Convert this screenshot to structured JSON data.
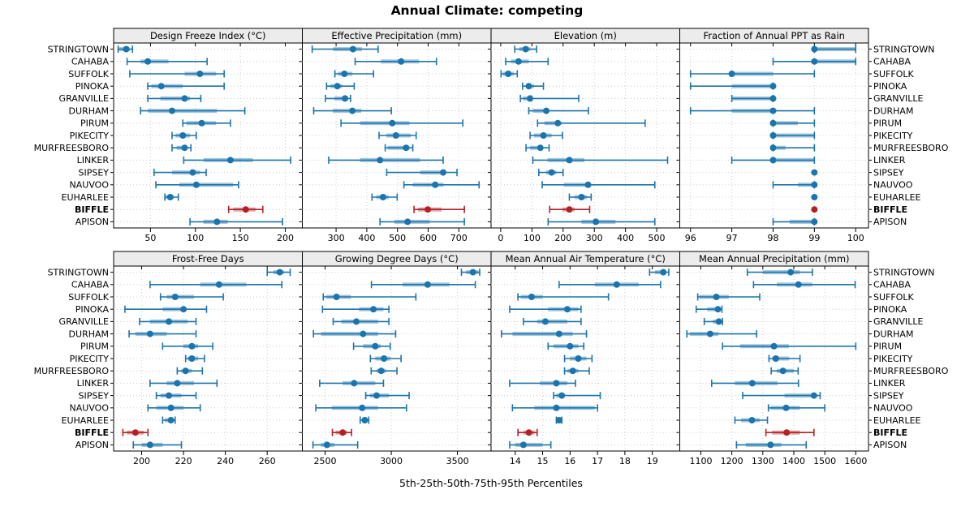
{
  "chart_data": {
    "type": "scatter",
    "subtype": "trellis-percentile-dotplot",
    "title": "Annual Climate: competing",
    "xlabel": "5th-25th-50th-75th-95th Percentiles",
    "layout_hint": {
      "rows": 2,
      "cols": 4,
      "grid": "dotted",
      "row_labels_both_sides": true
    },
    "categories": [
      "STRINGTOWN",
      "CAHABA",
      "SUFFOLK",
      "PINOKA",
      "GRANVILLE",
      "DURHAM",
      "PIRUM",
      "PIKECITY",
      "MURFREESBORO",
      "LINKER",
      "SIPSEY",
      "NAUVOO",
      "EUHARLEE",
      "BIFFLE",
      "APISON"
    ],
    "highlight_category": "BIFFLE",
    "colors": {
      "series": "#1c74ad",
      "highlight": "#b42125",
      "grid": "#cccccc",
      "strip_bg": "#ececec",
      "border": "#000000"
    },
    "panels": [
      {
        "label": "Design Freeze Index (°C)",
        "xlim": [
          9,
          219
        ],
        "ticks": [
          50,
          100,
          150,
          200
        ],
        "percentiles": [
          [
            14,
            15,
            23,
            27,
            30
          ],
          [
            24,
            39,
            47,
            70,
            113
          ],
          [
            27,
            88,
            105,
            123,
            132
          ],
          [
            47,
            51,
            62,
            86,
            132
          ],
          [
            47,
            61,
            88,
            94,
            106
          ],
          [
            39,
            47,
            74,
            124,
            155
          ],
          [
            86,
            90,
            107,
            123,
            139
          ],
          [
            74,
            78,
            86,
            94,
            101
          ],
          [
            74,
            79,
            88,
            91,
            95
          ],
          [
            87,
            109,
            139,
            164,
            206
          ],
          [
            54,
            74,
            97,
            105,
            112
          ],
          [
            56,
            82,
            101,
            142,
            148
          ],
          [
            66,
            67,
            72,
            76,
            81
          ],
          [
            137,
            142,
            156,
            167,
            175
          ],
          [
            94,
            109,
            124,
            136,
            197
          ]
        ]
      },
      {
        "label": "Effective Precipitation (mm)",
        "xlim": [
          190,
          805
        ],
        "ticks": [
          300,
          400,
          500,
          600,
          700
        ],
        "percentiles": [
          [
            222,
            290,
            355,
            384,
            437
          ],
          [
            362,
            446,
            512,
            570,
            627
          ],
          [
            296,
            306,
            327,
            353,
            422
          ],
          [
            269,
            281,
            304,
            320,
            359
          ],
          [
            265,
            294,
            329,
            336,
            347
          ],
          [
            227,
            289,
            353,
            382,
            480
          ],
          [
            316,
            378,
            483,
            539,
            713
          ],
          [
            440,
            464,
            495,
            543,
            561
          ],
          [
            460,
            468,
            528,
            539,
            550
          ],
          [
            276,
            378,
            443,
            574,
            649
          ],
          [
            465,
            574,
            649,
            655,
            694
          ],
          [
            521,
            550,
            623,
            650,
            766
          ],
          [
            417,
            431,
            453,
            472,
            499
          ],
          [
            554,
            567,
            599,
            644,
            718
          ],
          [
            443,
            490,
            533,
            605,
            718
          ]
        ]
      },
      {
        "label": "Elevation (m)",
        "xlim": [
          -31,
          574
        ],
        "ticks": [
          0,
          100,
          200,
          300,
          400,
          500
        ],
        "percentiles": [
          [
            45,
            60,
            80,
            95,
            115
          ],
          [
            16,
            33,
            57,
            90,
            152
          ],
          [
            1,
            7,
            24,
            42,
            53
          ],
          [
            70,
            81,
            90,
            107,
            137
          ],
          [
            63,
            72,
            94,
            103,
            250
          ],
          [
            90,
            103,
            146,
            155,
            281
          ],
          [
            118,
            140,
            183,
            195,
            463
          ],
          [
            94,
            107,
            137,
            163,
            198
          ],
          [
            81,
            94,
            127,
            133,
            155
          ],
          [
            103,
            150,
            220,
            268,
            535
          ],
          [
            122,
            146,
            163,
            178,
            200
          ],
          [
            133,
            203,
            280,
            288,
            494
          ],
          [
            220,
            237,
            259,
            277,
            290
          ],
          [
            157,
            198,
            220,
            237,
            285
          ],
          [
            152,
            259,
            305,
            368,
            494
          ]
        ]
      },
      {
        "label": "Fraction of Annual PPT as Rain",
        "xlim": [
          95.74,
          100.31
        ],
        "ticks": [
          96,
          97,
          98,
          99,
          100
        ],
        "percentiles": [
          [
            99,
            99,
            99,
            100,
            100
          ],
          [
            98,
            99,
            99,
            100,
            100
          ],
          [
            96,
            97,
            97,
            98,
            99
          ],
          [
            96,
            97,
            98,
            98,
            98
          ],
          [
            97,
            97,
            98,
            98,
            98
          ],
          [
            96,
            97,
            98,
            98,
            99
          ],
          [
            98,
            98,
            98,
            98.6,
            99
          ],
          [
            98,
            98,
            98,
            99,
            99
          ],
          [
            98,
            98,
            98,
            98.3,
            99
          ],
          [
            97,
            98,
            98,
            99,
            99
          ],
          [
            99,
            99,
            99,
            99,
            99
          ],
          [
            98,
            98.6,
            99,
            99,
            99
          ],
          [
            99,
            99,
            99,
            99,
            99
          ],
          [
            99,
            99,
            99,
            99,
            99
          ],
          [
            98,
            98.4,
            99,
            99,
            99
          ]
        ]
      },
      {
        "label": "Frost-Free Days",
        "xlim": [
          186.6,
          276.8
        ],
        "ticks": [
          200,
          220,
          240,
          260
        ],
        "percentiles": [
          [
            260,
            263,
            266,
            268,
            271
          ],
          [
            204,
            228,
            237,
            250,
            267
          ],
          [
            209,
            212,
            216,
            225,
            239
          ],
          [
            192,
            210,
            220,
            221,
            231
          ],
          [
            199,
            204,
            213,
            222,
            226
          ],
          [
            194,
            197,
            204,
            212,
            226
          ],
          [
            210,
            220,
            224,
            227,
            234
          ],
          [
            221,
            222,
            224,
            227,
            230
          ],
          [
            217,
            219,
            221,
            224,
            229
          ],
          [
            204,
            212,
            217,
            225,
            236
          ],
          [
            207,
            209,
            213,
            219,
            226
          ],
          [
            203,
            207,
            214,
            220,
            228
          ],
          [
            210,
            211,
            214,
            215,
            216
          ],
          [
            191,
            193,
            197,
            201,
            203
          ],
          [
            196,
            200,
            204,
            210,
            219
          ]
        ]
      },
      {
        "label": "Growing Degree Days (°C)",
        "xlim": [
          2328,
          3754
        ],
        "ticks": [
          2500,
          3000,
          3500
        ],
        "percentiles": [
          [
            3530,
            3566,
            3617,
            3660,
            3668
          ],
          [
            2850,
            3085,
            3275,
            3440,
            3635
          ],
          [
            2486,
            2510,
            2586,
            2695,
            3186
          ],
          [
            2480,
            2756,
            2865,
            2941,
            2982
          ],
          [
            2561,
            2623,
            2736,
            2900,
            2982
          ],
          [
            2412,
            2469,
            2787,
            2900,
            3033
          ],
          [
            2715,
            2787,
            2879,
            2920,
            2992
          ],
          [
            2842,
            2879,
            2945,
            2992,
            3074
          ],
          [
            2848,
            2889,
            2924,
            2961,
            3043
          ],
          [
            2459,
            2633,
            2719,
            2879,
            2941
          ],
          [
            2807,
            2838,
            2889,
            2982,
            3135
          ],
          [
            2430,
            2550,
            2780,
            2900,
            3115
          ],
          [
            2765,
            2780,
            2800,
            2815,
            2830
          ],
          [
            2555,
            2580,
            2633,
            2665,
            2700
          ],
          [
            2408,
            2469,
            2514,
            2572,
            2746
          ]
        ]
      },
      {
        "label": "Mean Annual Air Temperature (°C)",
        "xlim": [
          13.12,
          20.0
        ],
        "ticks": [
          14,
          15,
          16,
          17,
          18,
          19
        ],
        "percentiles": [
          [
            18.9,
            19.1,
            19.4,
            19.5,
            19.6
          ],
          [
            15.6,
            16.9,
            17.7,
            18.5,
            19.3
          ],
          [
            14.1,
            14.2,
            14.6,
            15.0,
            17.4
          ],
          [
            13.8,
            15.2,
            15.9,
            16.3,
            16.4
          ],
          [
            14.3,
            14.8,
            15.1,
            15.9,
            16.4
          ],
          [
            13.5,
            13.9,
            15.6,
            16.1,
            16.6
          ],
          [
            15.2,
            15.4,
            16.0,
            16.3,
            16.5
          ],
          [
            15.8,
            16.0,
            16.3,
            16.6,
            16.8
          ],
          [
            15.8,
            15.9,
            16.1,
            16.3,
            16.7
          ],
          [
            13.8,
            14.9,
            15.5,
            15.9,
            16.2
          ],
          [
            15.4,
            15.5,
            15.7,
            15.8,
            17.1
          ],
          [
            13.9,
            14.7,
            15.5,
            16.9,
            17.0
          ],
          [
            15.5,
            15.5,
            15.6,
            15.6,
            15.7
          ],
          [
            14.1,
            14.3,
            14.5,
            14.7,
            14.8
          ],
          [
            13.8,
            14.0,
            14.3,
            15.0,
            15.3
          ]
        ]
      },
      {
        "label": "Mean Annual Precipitation (mm)",
        "xlim": [
          1032,
          1641
        ],
        "ticks": [
          1100,
          1200,
          1300,
          1400,
          1500,
          1600
        ],
        "percentiles": [
          [
            1250,
            1300,
            1390,
            1420,
            1460
          ],
          [
            1270,
            1345,
            1415,
            1460,
            1598
          ],
          [
            1090,
            1095,
            1150,
            1190,
            1290
          ],
          [
            1085,
            1120,
            1155,
            1163,
            1168
          ],
          [
            1111,
            1139,
            1158,
            1165,
            1170
          ],
          [
            1055,
            1065,
            1130,
            1157,
            1280
          ],
          [
            1170,
            1227,
            1336,
            1384,
            1600
          ],
          [
            1320,
            1330,
            1342,
            1385,
            1420
          ],
          [
            1327,
            1345,
            1365,
            1400,
            1414
          ],
          [
            1135,
            1210,
            1266,
            1347,
            1415
          ],
          [
            1235,
            1370,
            1465,
            1475,
            1485
          ],
          [
            1318,
            1325,
            1375,
            1420,
            1500
          ],
          [
            1210,
            1230,
            1265,
            1290,
            1315
          ],
          [
            1310,
            1330,
            1377,
            1420,
            1465
          ],
          [
            1215,
            1245,
            1325,
            1360,
            1440
          ]
        ]
      }
    ]
  }
}
